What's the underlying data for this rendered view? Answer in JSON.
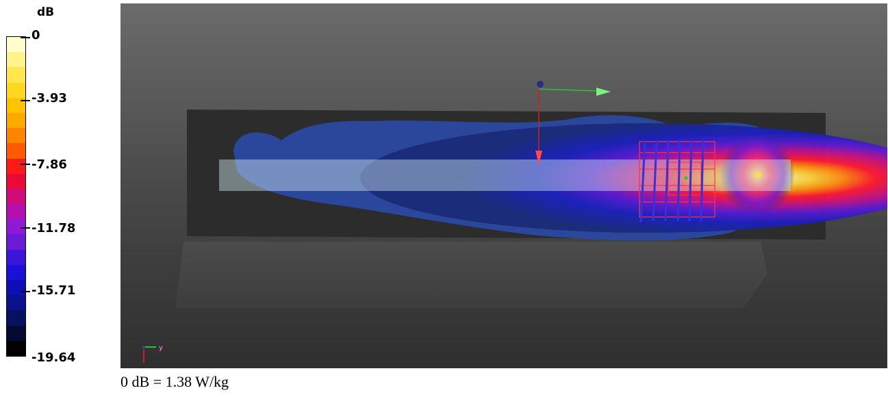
{
  "legend": {
    "unit": "dB",
    "ticks": [
      "0",
      "-3.93",
      "-7.86",
      "-11.78",
      "-15.71",
      "-19.64"
    ],
    "colors": [
      "#ffffcc",
      "#fff38a",
      "#ffe74d",
      "#ffd81f",
      "#ffc400",
      "#ffa900",
      "#ff8400",
      "#ff5a00",
      "#ff1a1a",
      "#ea0a3a",
      "#d10a7a",
      "#b30fb0",
      "#8f1ad6",
      "#6b1ad6",
      "#3d14d9",
      "#1a10d6",
      "#0d0fb5",
      "#0b1290",
      "#081060",
      "#040a33",
      "#000000"
    ]
  },
  "viewport": {
    "axis_label": "y",
    "colors": {
      "background_top": "#6b6b6b",
      "background_bottom": "#2f2f2f",
      "hotspot": "#fff7c2",
      "gizmo_x": "#22cc22",
      "gizmo_z": "#cc2222",
      "grid": "#ff3344"
    }
  },
  "footer": {
    "text": "0 dB = 1.38 W/kg"
  }
}
